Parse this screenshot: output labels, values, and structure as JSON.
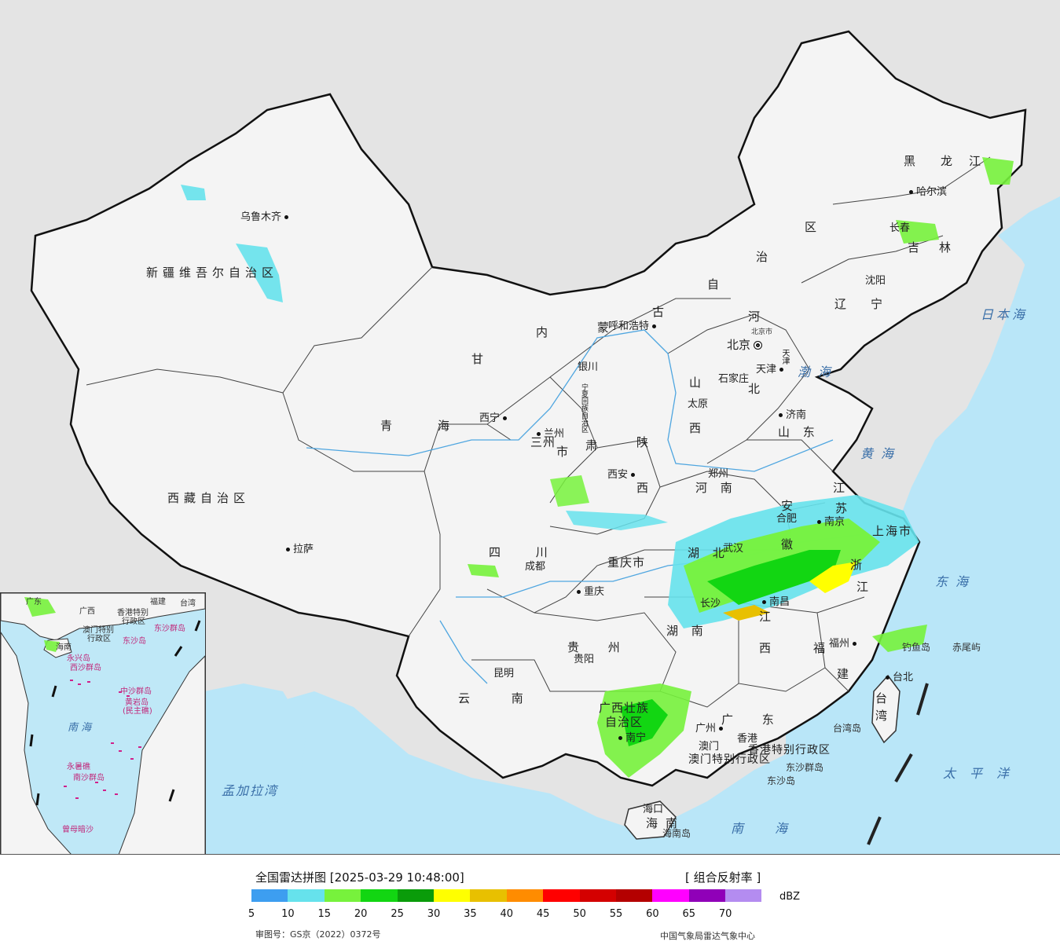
{
  "map": {
    "provinces": [
      {
        "id": "xinjiang",
        "text": "新疆维吾尔自治区"
      },
      {
        "id": "xizang",
        "text": "西藏自治区"
      },
      {
        "id": "qinghai-q",
        "text": "青"
      },
      {
        "id": "qinghai-h",
        "text": "海"
      },
      {
        "id": "gansu-g",
        "text": "甘"
      },
      {
        "id": "gansu-s",
        "text": "肃"
      },
      {
        "id": "neimenggu-n",
        "text": "内"
      },
      {
        "id": "neimenggu-m",
        "text": "蒙"
      },
      {
        "id": "neimenggu-g",
        "text": "古"
      },
      {
        "id": "neimenggu-z",
        "text": "自"
      },
      {
        "id": "neimenggu-zh",
        "text": "治"
      },
      {
        "id": "neimenggu-q",
        "text": "区"
      },
      {
        "id": "heilongjiang-h",
        "text": "黑"
      },
      {
        "id": "heilongjiang-l",
        "text": "龙"
      },
      {
        "id": "heilongjiang-j",
        "text": "江"
      },
      {
        "id": "jilin-j",
        "text": "吉"
      },
      {
        "id": "jilin-l",
        "text": "林"
      },
      {
        "id": "liaoning-l",
        "text": "辽"
      },
      {
        "id": "liaoning-n",
        "text": "宁"
      },
      {
        "id": "hebei-h",
        "text": "河"
      },
      {
        "id": "hebei-b",
        "text": "北"
      },
      {
        "id": "shanxi-s",
        "text": "山"
      },
      {
        "id": "shanxi-x",
        "text": "西"
      },
      {
        "id": "shandong",
        "text": "山 东"
      },
      {
        "id": "shaanxi-s",
        "text": "陕"
      },
      {
        "id": "shaanxi-x",
        "text": "西"
      },
      {
        "id": "henan",
        "text": "河 南"
      },
      {
        "id": "jiangsu-j",
        "text": "江"
      },
      {
        "id": "jiangsu-s",
        "text": "苏"
      },
      {
        "id": "anhui-a",
        "text": "安"
      },
      {
        "id": "anhui-h",
        "text": "徽"
      },
      {
        "id": "shanghai",
        "text": "上海市"
      },
      {
        "id": "zhejiang-z",
        "text": "浙"
      },
      {
        "id": "zhejiang-j",
        "text": "江"
      },
      {
        "id": "hubei",
        "text": "湖 北"
      },
      {
        "id": "hunan",
        "text": "湖 南"
      },
      {
        "id": "jiangxi-j",
        "text": "江"
      },
      {
        "id": "jiangxi-x",
        "text": "西"
      },
      {
        "id": "fujian-f",
        "text": "福"
      },
      {
        "id": "fujian-j",
        "text": "建"
      },
      {
        "id": "sichuan",
        "text": "四 川"
      },
      {
        "id": "chongqing",
        "text": "重庆市"
      },
      {
        "id": "guizhou",
        "text": "贵 州"
      },
      {
        "id": "yunnan",
        "text": "云 南"
      },
      {
        "id": "guangxi-1",
        "text": "广西壮族"
      },
      {
        "id": "guangxi-2",
        "text": "自治区"
      },
      {
        "id": "guangdong",
        "text": "广 东"
      },
      {
        "id": "hainan-1",
        "text": "海"
      },
      {
        "id": "hainan-2",
        "text": "南"
      },
      {
        "id": "taiwan-1",
        "text": "台"
      },
      {
        "id": "taiwan-2",
        "text": "湾"
      },
      {
        "id": "ningxia",
        "text": "宁夏回族自治区"
      },
      {
        "id": "gansu-city",
        "text": "三州"
      },
      {
        "id": "gansu-shi",
        "text": "市"
      },
      {
        "id": "tianjin-label",
        "text": "天津"
      },
      {
        "id": "hk",
        "text": "香港特别行政区"
      },
      {
        "id": "macau",
        "text": "澳门特别行政区"
      }
    ],
    "cities": [
      {
        "id": "urumqi",
        "text": "乌鲁木齐",
        "side": "after"
      },
      {
        "id": "lhasa",
        "text": "拉萨",
        "side": "before"
      },
      {
        "id": "xining",
        "text": "西宁",
        "side": "after"
      },
      {
        "id": "lanzhou",
        "text": "兰州",
        "side": "before"
      },
      {
        "id": "yinchuan",
        "text": "银川",
        "side": "after"
      },
      {
        "id": "hohhot",
        "text": "呼和浩特",
        "side": "after"
      },
      {
        "id": "harbin",
        "text": "哈尔滨",
        "side": "before"
      },
      {
        "id": "changchun",
        "text": "长春",
        "side": "after"
      },
      {
        "id": "shenyang",
        "text": "沈阳",
        "side": "after"
      },
      {
        "id": "beijing",
        "text": "北京",
        "side": "after"
      },
      {
        "id": "tianjin",
        "text": "天津",
        "side": "after"
      },
      {
        "id": "shijiazhuang",
        "text": "石家庄",
        "side": "after"
      },
      {
        "id": "taiyuan",
        "text": "太原",
        "side": "before"
      },
      {
        "id": "jinan",
        "text": "济南",
        "side": "before"
      },
      {
        "id": "zhengzhou",
        "text": "郑州",
        "side": "after"
      },
      {
        "id": "xian",
        "text": "西安",
        "side": "after"
      },
      {
        "id": "hefei",
        "text": "合肥",
        "side": "after"
      },
      {
        "id": "nanjing",
        "text": "南京",
        "side": "before"
      },
      {
        "id": "wuhan",
        "text": "武汉",
        "side": "after"
      },
      {
        "id": "chengdu",
        "text": "成都",
        "side": "before"
      },
      {
        "id": "chongqing-city",
        "text": "重庆",
        "side": "before"
      },
      {
        "id": "changsha",
        "text": "长沙",
        "side": "after"
      },
      {
        "id": "nanchang",
        "text": "南昌",
        "side": "before"
      },
      {
        "id": "guiyang",
        "text": "贵阳",
        "side": "before"
      },
      {
        "id": "kunming",
        "text": "昆明",
        "side": "after"
      },
      {
        "id": "fuzhou",
        "text": "福州",
        "side": "before"
      },
      {
        "id": "taibei",
        "text": "台北",
        "side": "before"
      },
      {
        "id": "nanning",
        "text": "南宁",
        "side": "before"
      },
      {
        "id": "guangzhou",
        "text": "广州",
        "side": "after"
      },
      {
        "id": "hongkong",
        "text": "香港",
        "side": "before"
      },
      {
        "id": "macau-city",
        "text": "澳门",
        "side": "after"
      },
      {
        "id": "haikou",
        "text": "海口",
        "side": "before"
      }
    ],
    "seas": [
      {
        "id": "bohai",
        "text": "渤海"
      },
      {
        "id": "huanghai",
        "text": "黄海"
      },
      {
        "id": "donghai",
        "text": "东海"
      },
      {
        "id": "nanhai",
        "text": "南海"
      },
      {
        "id": "taipingyang",
        "text": "太平洋"
      },
      {
        "id": "ribenhai",
        "text": "日本海"
      },
      {
        "id": "mengjialawan",
        "text": "孟加拉湾"
      }
    ],
    "islands": [
      {
        "id": "diaoyudao",
        "text": "钓鱼岛"
      },
      {
        "id": "chiweiyu",
        "text": "赤尾屿"
      },
      {
        "id": "taiwandao",
        "text": "台湾岛"
      },
      {
        "id": "dongshaqundao",
        "text": "东沙群岛"
      },
      {
        "id": "dongshadao",
        "text": "东沙岛"
      },
      {
        "id": "hainandao",
        "text": "海南岛"
      },
      {
        "id": "beijingshi",
        "text": "北京市"
      }
    ]
  },
  "inset": {
    "labels": [
      {
        "id": "i-guangdong",
        "text": "广东"
      },
      {
        "id": "i-guangxi",
        "text": "广西"
      },
      {
        "id": "i-taiwan",
        "text": "台湾"
      },
      {
        "id": "i-fujian",
        "text": "福建"
      },
      {
        "id": "i-hk",
        "text": "香港特别"
      },
      {
        "id": "i-hk2",
        "text": "行政区"
      },
      {
        "id": "i-macau",
        "text": "澳门特别"
      },
      {
        "id": "i-macau2",
        "text": "行政区"
      },
      {
        "id": "i-dongsha",
        "text": "东沙群岛"
      },
      {
        "id": "i-dongsha2",
        "text": "东沙岛"
      },
      {
        "id": "i-hainan",
        "text": "海南"
      },
      {
        "id": "i-xisha",
        "text": "西沙群岛"
      },
      {
        "id": "i-yongxing",
        "text": "永兴岛"
      },
      {
        "id": "i-zhongsha",
        "text": "中沙群岛"
      },
      {
        "id": "i-huangyan",
        "text": "黄岩岛"
      },
      {
        "id": "i-minzhu",
        "text": "(民主礁)"
      },
      {
        "id": "i-nanhai",
        "text": "南 海"
      },
      {
        "id": "i-yongshu",
        "text": "永暑礁"
      },
      {
        "id": "i-nansha",
        "text": "南沙群岛"
      },
      {
        "id": "i-zengmu",
        "text": "曾母暗沙"
      }
    ]
  },
  "legend": {
    "title": "全国雷达拼图 [2025-03-29 10:48:00]",
    "product": "[ 组合反射率 ]",
    "unit": "dBZ",
    "colors": [
      "#3d9ef0",
      "#66e2ec",
      "#77f23c",
      "#12d612",
      "#0a9c0a",
      "#ffff00",
      "#e8c000",
      "#ff8c00",
      "#ff0000",
      "#d40000",
      "#b40000",
      "#ff00ff",
      "#9000b8",
      "#b48cf0"
    ],
    "ticks": [
      "5",
      "10",
      "15",
      "20",
      "25",
      "30",
      "35",
      "40",
      "45",
      "50",
      "55",
      "60",
      "65",
      "70"
    ],
    "review_number": "审图号：GS京（2022）0372号",
    "source": "中国气象局雷达气象中心"
  }
}
